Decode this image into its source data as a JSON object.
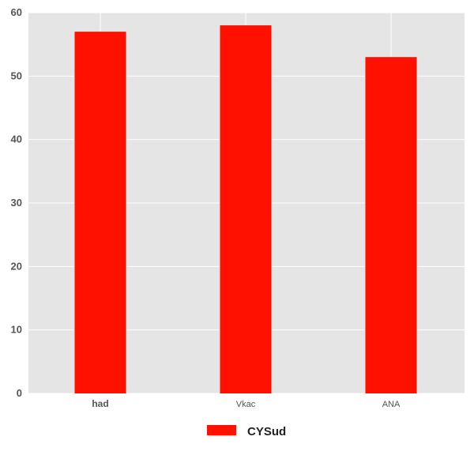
{
  "chart_data": {
    "type": "bar",
    "title": "",
    "xlabel": "",
    "ylabel": "",
    "categories": [
      "had",
      "Vkac",
      "ANA"
    ],
    "series": [
      {
        "name": "CYSud",
        "values": [
          57,
          58,
          53
        ],
        "color": "#ff1100"
      }
    ],
    "ylim": [
      0,
      60
    ],
    "yticks": [
      0,
      10,
      20,
      30,
      40,
      50,
      60
    ],
    "grid": true,
    "background": "#e5e5e5",
    "legend_position": "bottom-center"
  }
}
